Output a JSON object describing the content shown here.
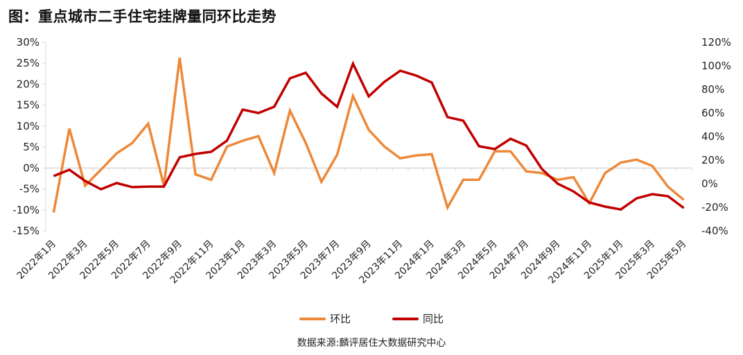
{
  "title": "图：重点城市二手住宅挂牌量同环比走势",
  "source": "数据来源:麟评居住大数据研究中心",
  "colors": {
    "huanbi": "#ED8838",
    "tongbi": "#C00000",
    "axis": "#D9D9D9"
  },
  "chart_data": {
    "type": "line",
    "title": "图：重点城市二手住宅挂牌量同环比走势",
    "x": [
      "2022年1月",
      "2022年2月",
      "2022年3月",
      "2022年4月",
      "2022年5月",
      "2022年6月",
      "2022年7月",
      "2022年8月",
      "2022年9月",
      "2022年10月",
      "2022年11月",
      "2022年12月",
      "2023年1月",
      "2023年2月",
      "2023年3月",
      "2023年4月",
      "2023年5月",
      "2023年6月",
      "2023年7月",
      "2023年8月",
      "2023年9月",
      "2023年10月",
      "2023年11月",
      "2023年12月",
      "2024年1月",
      "2024年2月",
      "2024年3月",
      "2024年4月",
      "2024年5月",
      "2024年6月",
      "2024年7月",
      "2024年8月",
      "2024年9月",
      "2024年10月",
      "2024年11月",
      "2024年12月",
      "2025年1月",
      "2025年2月",
      "2025年3月",
      "2025年4月",
      "2025年5月"
    ],
    "x_tick_labels": [
      "2022年1月",
      "2022年3月",
      "2022年5月",
      "2022年7月",
      "2022年9月",
      "2022年11月",
      "2023年1月",
      "2023年3月",
      "2023年5月",
      "2023年7月",
      "2023年9月",
      "2023年11月",
      "2024年1月",
      "2024年3月",
      "2024年5月",
      "2024年7月",
      "2024年9月",
      "2024年11月",
      "2025年1月",
      "2025年3月",
      "2025年5月"
    ],
    "series": [
      {
        "name": "环比",
        "axis": "left",
        "values": [
          -10.6,
          9.4,
          -4.2,
          -0.4,
          3.5,
          6.0,
          10.6,
          -4.2,
          26.3,
          -1.5,
          -2.8,
          5.1,
          6.5,
          7.6,
          -1.2,
          13.7,
          6.0,
          -3.3,
          3.2,
          17.2,
          9.1,
          5.1,
          2.3,
          3.0,
          3.3,
          -9.4,
          -2.8,
          -2.8,
          4.0,
          4.0,
          -0.8,
          -1.2,
          -2.8,
          -2.2,
          -8.4,
          -1.2,
          1.3,
          2.0,
          0.5,
          -4.5,
          -7.6
        ]
      },
      {
        "name": "同比",
        "axis": "right",
        "values": [
          6.5,
          11.8,
          2.4,
          -4.7,
          0.6,
          -2.9,
          -2.4,
          -2.4,
          22.4,
          25.3,
          27.1,
          36.5,
          62.9,
          60.0,
          65.3,
          89.4,
          94.1,
          76.5,
          65.3,
          101.8,
          74.1,
          86.5,
          95.9,
          91.8,
          85.9,
          56.5,
          53.5,
          31.8,
          29.4,
          38.2,
          32.4,
          12.4,
          0.0,
          -6.5,
          -15.9,
          -19.4,
          -21.8,
          -12.4,
          -8.8,
          -10.6,
          -20.6
        ]
      }
    ],
    "y_left": {
      "ylim": [
        -15,
        30
      ],
      "ticks": [
        "-15%",
        "-10%",
        "-5%",
        "0%",
        "5%",
        "10%",
        "15%",
        "20%",
        "25%",
        "30%"
      ],
      "tick_values": [
        -15,
        -10,
        -5,
        0,
        5,
        10,
        15,
        20,
        25,
        30
      ]
    },
    "y_right": {
      "ylim": [
        -40,
        120
      ],
      "ticks": [
        "-40%",
        "-20%",
        "0%",
        "20%",
        "40%",
        "60%",
        "80%",
        "100%",
        "120%"
      ],
      "tick_values": [
        -40,
        -20,
        0,
        20,
        40,
        60,
        80,
        100,
        120
      ]
    },
    "legend": [
      "环比",
      "同比"
    ],
    "legend_position": "bottom",
    "grid": false,
    "xlabel": "",
    "ylabel": ""
  }
}
